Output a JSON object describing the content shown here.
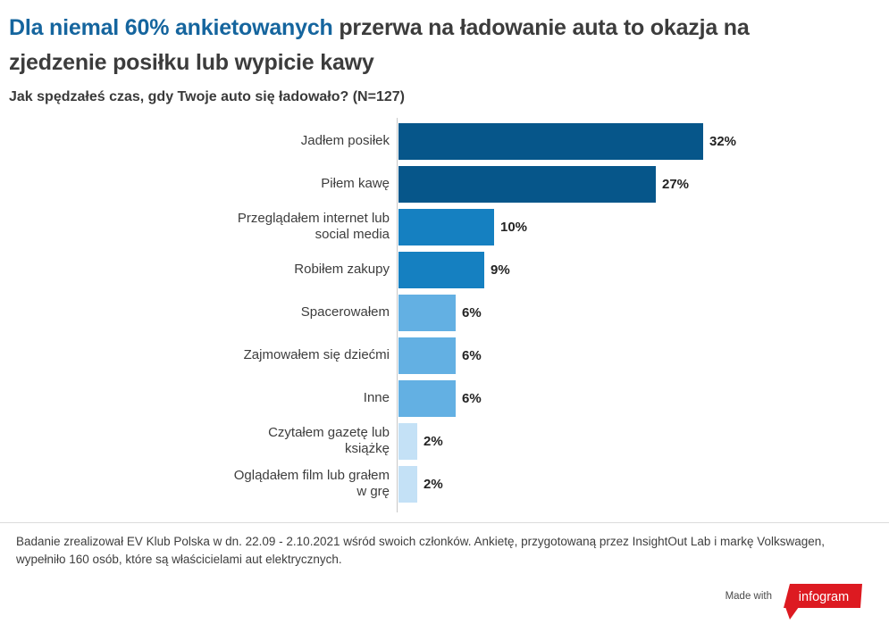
{
  "header": {
    "title_highlight": "Dla niemal 60% ankietowanych",
    "title_rest": " przerwa na ładowanie auta to okazja na",
    "title_line2": "zjedzenie posiłku lub wypicie kawy",
    "subtitle": "Jak spędzałeś czas, gdy Twoje auto się ładowało? (N=127)"
  },
  "chart_data": {
    "type": "bar",
    "orientation": "horizontal",
    "title": "Dla niemal 60% ankietowanych przerwa na ładowanie auta to okazja na zjedzenie posiłku lub wypicie kawy",
    "subtitle": "Jak spędzałeś czas, gdy Twoje auto się ładowało? (N=127)",
    "categories": [
      "Jadłem posiłek",
      "Piłem kawę",
      "Przeglądałem internet lub social media",
      "Robiłem zakupy",
      "Spacerowałem",
      "Zajmowałem się dziećmi",
      "Inne",
      "Czytałem gazetę lub książkę",
      "Oglądałem film lub grałem w grę"
    ],
    "values": [
      32,
      27,
      10,
      9,
      6,
      6,
      6,
      2,
      2
    ],
    "value_labels": [
      "32%",
      "27%",
      "10%",
      "9%",
      "6%",
      "6%",
      "6%",
      "2%",
      "2%"
    ],
    "unit": "%",
    "bar_colors": [
      "#06568a",
      "#06568a",
      "#1580c1",
      "#1580c1",
      "#63b0e3",
      "#63b0e3",
      "#63b0e3",
      "#c4e1f6",
      "#c4e1f6"
    ],
    "xlim": [
      0,
      35
    ],
    "grid": false,
    "legend": false,
    "value_label_position": "outside-end",
    "axis_color": "#c8c8c8"
  },
  "footer": {
    "source_text": "Badanie zrealizował EV Klub Polska w dn. 22.09 - 2.10.2021 wśród swoich członków. Ankietę, przygotowaną przez InsightOut Lab i markę Volkswagen, wypełniło 160 osób, które są właścicielami aut elektrycznych.",
    "made_with": "Made with",
    "brand": "infogram",
    "brand_color": "#dd1a21"
  },
  "colors": {
    "title_highlight": "#15659e",
    "text_dark": "#3c3c3c",
    "divider": "#dcdcdc"
  }
}
